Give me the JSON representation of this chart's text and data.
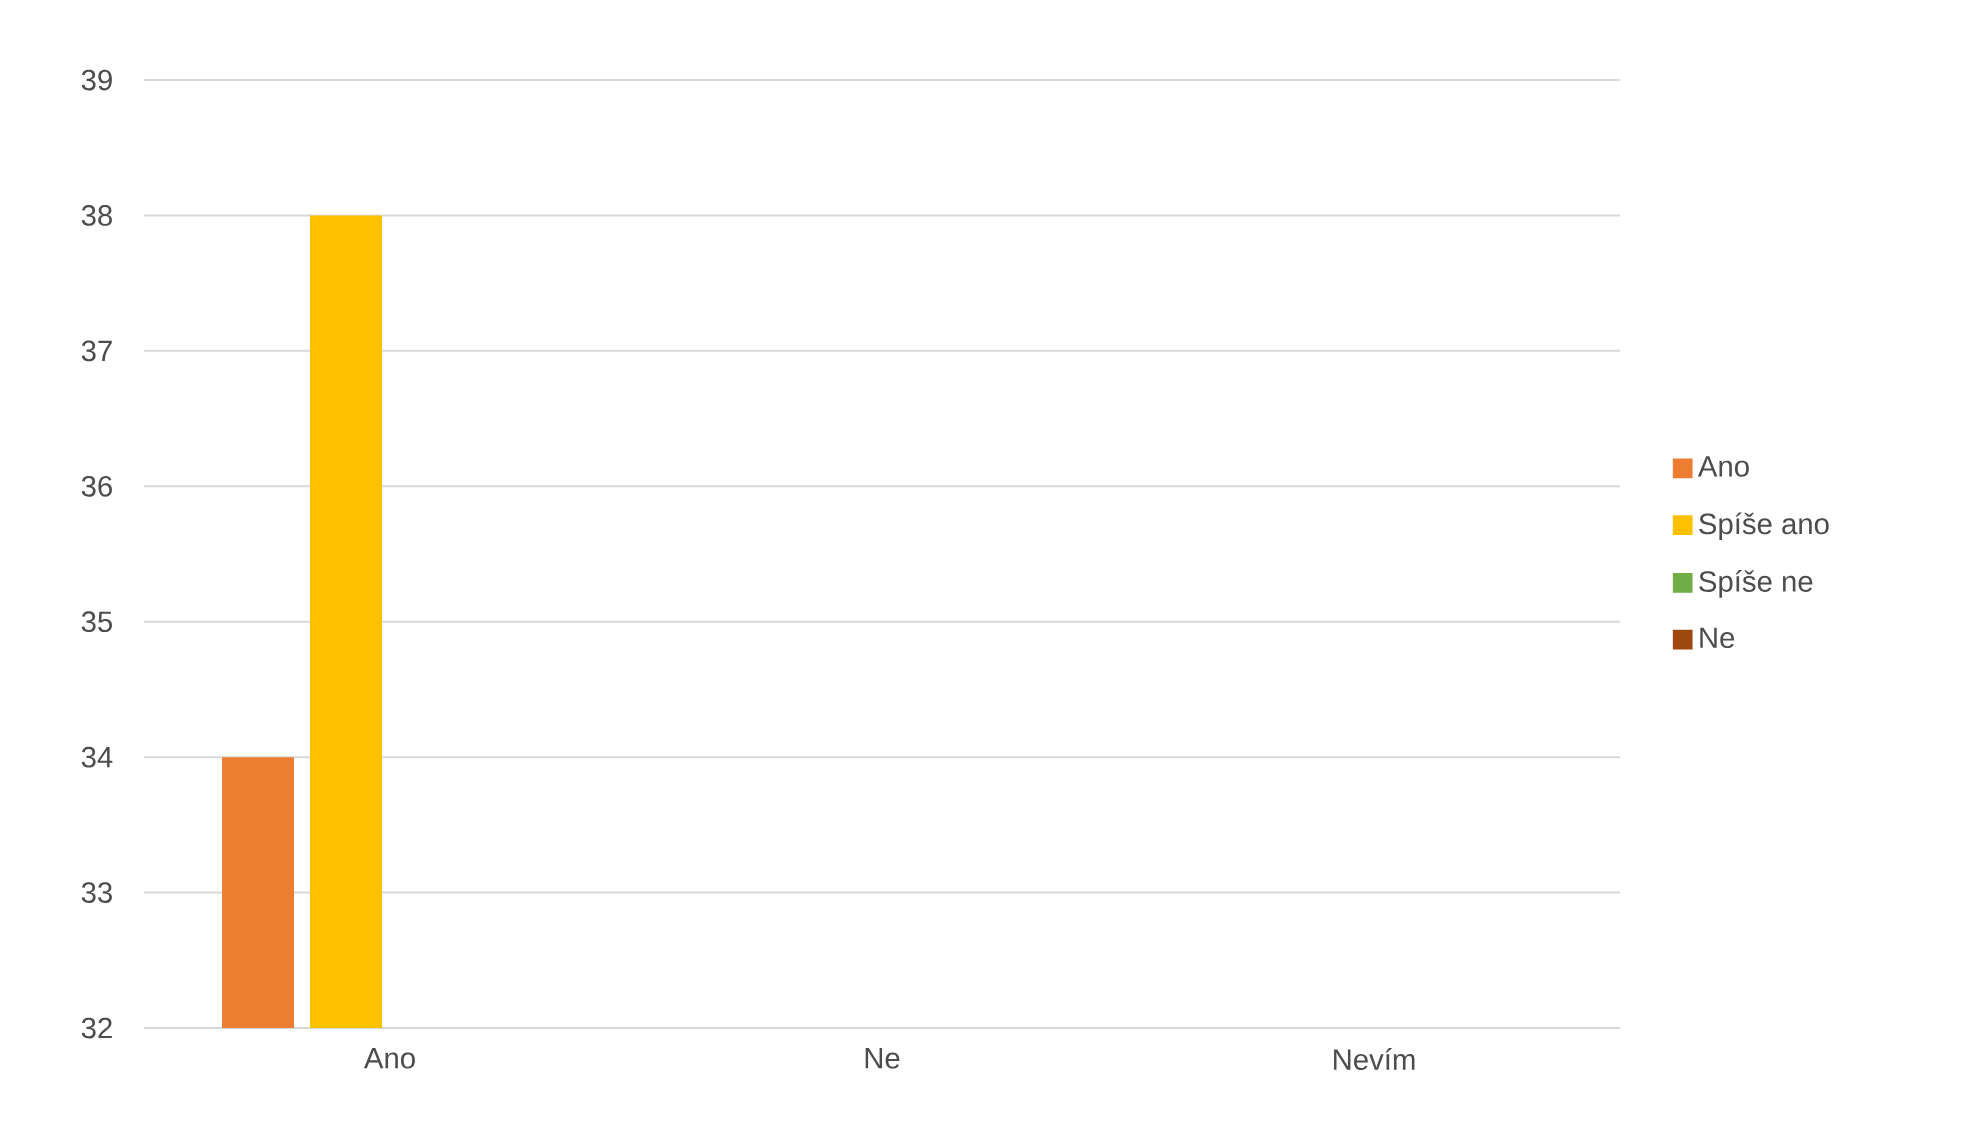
{
  "chart_data": {
    "type": "bar",
    "categories": [
      "Ano",
      "Ne",
      "Nevím"
    ],
    "series": [
      {
        "name": "Ano",
        "color": "#ed7d31",
        "values": [
          34,
          null,
          null
        ]
      },
      {
        "name": "Spíše ano",
        "color": "#ffc000",
        "values": [
          38,
          null,
          null
        ]
      },
      {
        "name": "Spíše ne",
        "color": "#70ad47",
        "values": [
          null,
          null,
          null
        ]
      },
      {
        "name": "Ne",
        "color": "#9e480e",
        "values": [
          null,
          null,
          null
        ]
      }
    ],
    "ylim": [
      32,
      39
    ],
    "yticks": [
      32,
      33,
      34,
      35,
      36,
      37,
      38,
      39
    ],
    "grid": "y",
    "legend": "right"
  }
}
